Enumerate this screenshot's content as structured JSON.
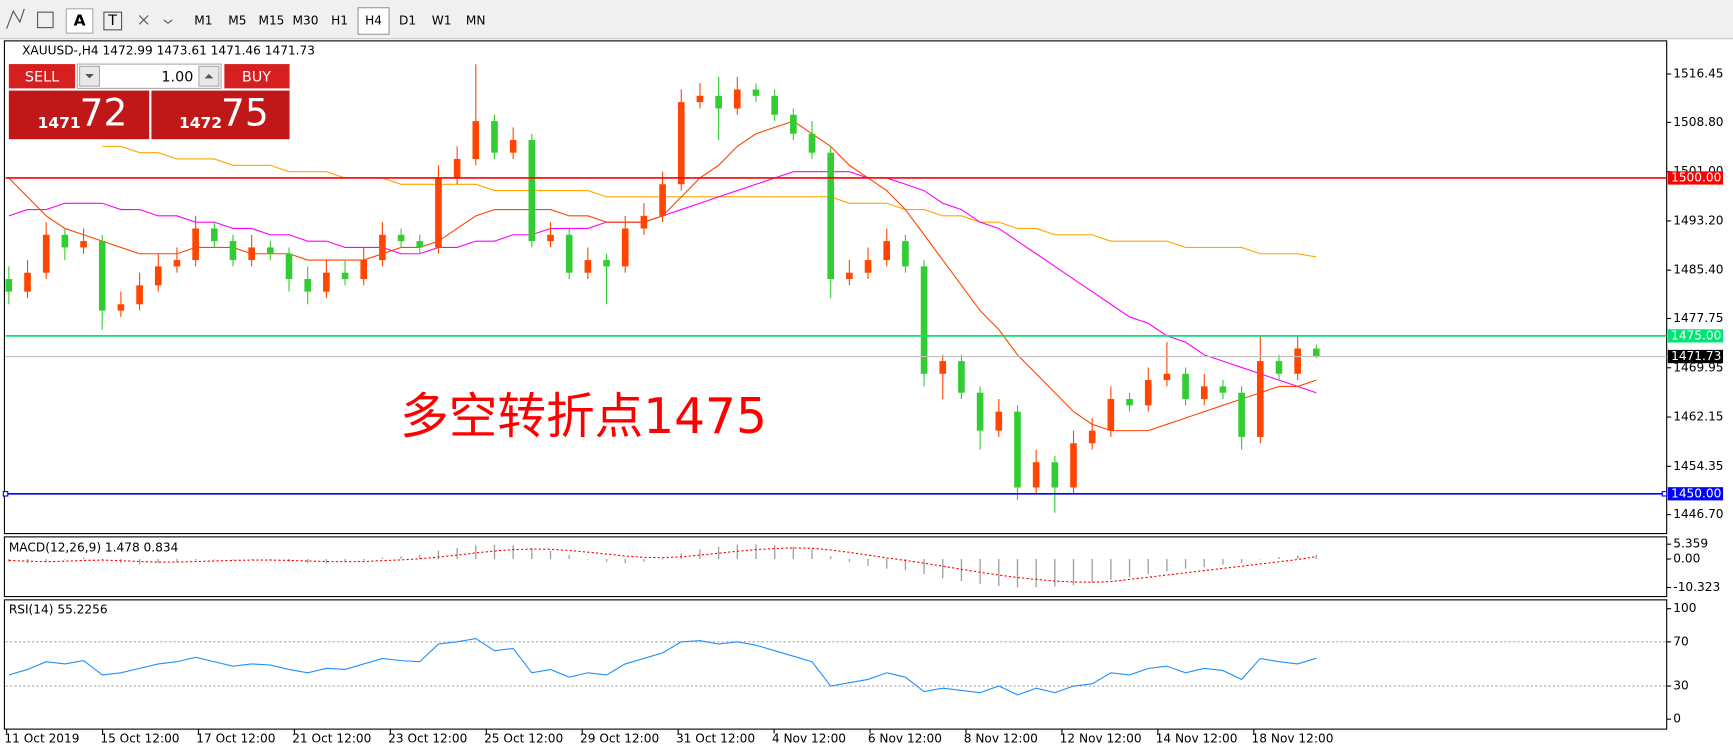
{
  "toolbar": {
    "tools": [
      "A"
    ],
    "timeframes": [
      "M1",
      "M5",
      "M15",
      "M30",
      "H1",
      "H4",
      "D1",
      "W1",
      "MN"
    ],
    "active": "H4"
  },
  "trade_panel": {
    "sell": "SELL",
    "buy": "BUY",
    "volume": "1.00",
    "bid": {
      "prefix": "1471",
      "main": "72"
    },
    "ask": {
      "prefix": "1472",
      "main": "75"
    }
  },
  "annotation": "多空转折点1475",
  "xtick_labels": [
    "11 Oct 2019",
    "15 Oct 12:00",
    "17 Oct 12:00",
    "21 Oct 12:00",
    "23 Oct 12:00",
    "25 Oct 12:00",
    "29 Oct 12:00",
    "31 Oct 12:00",
    "4 Nov 12:00",
    "6 Nov 12:00",
    "8 Nov 12:00",
    "12 Nov 12:00",
    "14 Nov 12:00",
    "18 Nov 12:00"
  ],
  "chart_data": [
    {
      "type": "candlestick",
      "title": "XAUUSD-,H4  1472.99 1473.61 1471.46 1471.73",
      "up_color": "#ff4500",
      "down_color": "#32cd32",
      "open": [
        1484,
        1482,
        1485,
        1491,
        1489,
        1490,
        1479,
        1480,
        1483,
        1486,
        1487,
        1492,
        1490,
        1487,
        1489,
        1488,
        1484,
        1482,
        1485,
        1484,
        1487,
        1491,
        1490,
        1489,
        1500,
        1503,
        1509,
        1504,
        1506,
        1490,
        1491,
        1485,
        1487,
        1486,
        1492,
        1494,
        1499,
        1512,
        1513,
        1511,
        1514,
        1513,
        1510,
        1507,
        1504,
        1484,
        1485,
        1487,
        1490,
        1486,
        1469,
        1471,
        1466,
        1460,
        1463,
        1451,
        1455,
        1451,
        1458,
        1460,
        1465,
        1464,
        1468,
        1469,
        1465,
        1467,
        1466,
        1459,
        1471,
        1469,
        1472.99
      ],
      "high": [
        1486,
        1487,
        1493,
        1492,
        1492,
        1491,
        1482,
        1485,
        1488,
        1489,
        1494,
        1493,
        1491,
        1491,
        1490,
        1489,
        1486,
        1487,
        1487,
        1489,
        1493,
        1492,
        1491,
        1502,
        1505,
        1518,
        1510,
        1508,
        1507,
        1493,
        1492,
        1489,
        1488,
        1494,
        1496,
        1501,
        1514,
        1515,
        1516,
        1516,
        1515,
        1514,
        1511,
        1509,
        1505,
        1487,
        1489,
        1492,
        1491,
        1487,
        1472,
        1472,
        1467,
        1465,
        1464,
        1457,
        1456,
        1460,
        1462,
        1467,
        1466,
        1470,
        1474,
        1470,
        1469,
        1468,
        1467,
        1475,
        1472,
        1475,
        1473.61
      ],
      "low": [
        1480,
        1481,
        1484,
        1487,
        1488,
        1476,
        1478,
        1479,
        1482,
        1485,
        1486,
        1489,
        1486,
        1486,
        1487,
        1482,
        1480,
        1481,
        1483,
        1483,
        1486,
        1489,
        1488,
        1488,
        1499,
        1502,
        1503,
        1503,
        1489,
        1489,
        1484,
        1484,
        1480,
        1485,
        1491,
        1493,
        1498,
        1511,
        1506,
        1510,
        1512,
        1509,
        1506,
        1503,
        1481,
        1483,
        1484,
        1486,
        1485,
        1467,
        1465,
        1465,
        1457,
        1459,
        1449,
        1450,
        1447,
        1450,
        1457,
        1459,
        1463,
        1463,
        1467,
        1464,
        1464,
        1465,
        1457,
        1458,
        1468,
        1468,
        1471.46
      ],
      "close": [
        1482,
        1485,
        1491,
        1489,
        1490,
        1479,
        1480,
        1483,
        1486,
        1487,
        1492,
        1490,
        1487,
        1489,
        1488,
        1484,
        1482,
        1485,
        1484,
        1487,
        1491,
        1490,
        1489,
        1500,
        1503,
        1509,
        1504,
        1506,
        1490,
        1491,
        1485,
        1487,
        1486,
        1492,
        1494,
        1499,
        1512,
        1513,
        1511,
        1514,
        1513,
        1510,
        1507,
        1504,
        1484,
        1485,
        1487,
        1490,
        1486,
        1469,
        1471,
        1466,
        1460,
        1463,
        1451,
        1455,
        1451,
        1458,
        1460,
        1465,
        1464,
        1468,
        1469,
        1465,
        1467,
        1466,
        1459,
        1471,
        1469,
        1473,
        1471.73
      ],
      "lines": [
        {
          "color": "#ffa500",
          "values": [
            null,
            null,
            null,
            null,
            null,
            1505,
            1505,
            1504,
            1504,
            1503,
            1503,
            1503,
            1502,
            1502,
            1502,
            1501,
            1501,
            1501,
            1500,
            1500,
            1500,
            1499,
            1499,
            1499,
            1499,
            1499,
            1498,
            1498,
            1498,
            1498,
            1498,
            1498,
            1497,
            1497,
            1497,
            1497,
            1497,
            1497,
            1497,
            1497,
            1497,
            1497,
            1497,
            1497,
            1497,
            1496,
            1496,
            1496,
            1495,
            1495,
            1494,
            1494,
            1493,
            1493,
            1492,
            1492,
            1491,
            1491,
            1491,
            1490,
            1490,
            1490,
            1490,
            1489,
            1489,
            1489,
            1489,
            1488,
            1488,
            1488,
            1487.5
          ]
        },
        {
          "color": "#ff00ff",
          "values": [
            1494,
            1495,
            1495,
            1496,
            1496,
            1496,
            1495,
            1495,
            1494,
            1494,
            1493,
            1493,
            1492,
            1492,
            1491,
            1491,
            1490,
            1490,
            1489,
            1489,
            1489,
            1488,
            1488,
            1489,
            1489,
            1490,
            1490,
            1491,
            1491,
            1492,
            1492,
            1492,
            1493,
            1493,
            1493,
            1494,
            1495,
            1496,
            1497,
            1498,
            1499,
            1500,
            1501,
            1501,
            1501,
            1501,
            1500,
            1500,
            1499,
            1498,
            1496,
            1495,
            1493,
            1492,
            1490,
            1488,
            1486,
            1484,
            1482,
            1480,
            1478,
            1477,
            1475,
            1474,
            1472,
            1471,
            1470,
            1469,
            1468,
            1467,
            1466
          ]
        },
        {
          "color": "#ff4500",
          "values": [
            1500,
            1497,
            1494,
            1492,
            1491,
            1490,
            1489,
            1488,
            1488,
            1488,
            1489,
            1489,
            1489,
            1488,
            1488,
            1488,
            1487,
            1487,
            1487,
            1487,
            1488,
            1489,
            1489,
            1490,
            1492,
            1494,
            1495,
            1495,
            1495,
            1495,
            1494,
            1494,
            1493,
            1493,
            1493,
            1494,
            1497,
            1500,
            1502,
            1505,
            1507,
            1508,
            1509,
            1507,
            1505,
            1502,
            1500,
            1498,
            1495,
            1491,
            1487,
            1483,
            1479,
            1476,
            1472,
            1469,
            1466,
            1463,
            1461,
            1460,
            1460,
            1460,
            1461,
            1462,
            1463,
            1464,
            1465,
            1466,
            1467,
            1467,
            1468
          ]
        }
      ],
      "levels": [
        {
          "value": 1500,
          "label": "1500.00",
          "color": "#ff0000"
        },
        {
          "value": 1475,
          "label": "1475.00",
          "color": "#00e676"
        },
        {
          "value": 1471.73,
          "label": "1471.73",
          "color": "#c0c0c0"
        },
        {
          "value": 1450,
          "label": "1450.00",
          "color": "#0000ff"
        }
      ],
      "ylim": [
        1443.7,
        1521.7
      ],
      "yticks": [
        1516.45,
        {
          "value": 1508.8,
          "label": "1508.80"
        },
        {
          "value": 1501,
          "label": "1501.00"
        },
        {
          "value": 1493.2,
          "label": "1493.20"
        },
        {
          "value": 1485.4,
          "label": "1485.40"
        },
        {
          "value": 1477.75,
          "label": "1477.75"
        },
        {
          "value": 1469.95,
          "label": "1469.95"
        },
        1462.15,
        1454.35,
        {
          "value": 1446.7,
          "label": "1446.70"
        }
      ]
    },
    {
      "type": "macd",
      "title": "MACD(12,26,9) 1.478 0.834",
      "hist_color": "#a0a0a0",
      "signal_color": "#ff0000",
      "values": [
        -1,
        -1.5,
        -1,
        0,
        0.5,
        -0.5,
        -1.5,
        -2,
        -1.5,
        -1,
        -0.5,
        0,
        0,
        -0.2,
        -0.5,
        -1,
        -1.5,
        -1.5,
        -1,
        -0.5,
        0.5,
        1,
        1.5,
        3,
        4,
        5,
        5.2,
        5,
        4,
        3,
        1.5,
        0,
        -1,
        -1.5,
        -1,
        0,
        2,
        3.5,
        4.5,
        5.2,
        5.3,
        5,
        4.5,
        3.5,
        1,
        -1,
        -2.5,
        -3.5,
        -4,
        -5.5,
        -7,
        -8,
        -9,
        -9.8,
        -10.3,
        -10.2,
        -10,
        -9.5,
        -8.5,
        -7.5,
        -6.5,
        -5.5,
        -4.5,
        -3.5,
        -3,
        -2,
        -1.5,
        0,
        0.8,
        1.2,
        1.478
      ],
      "signal": [
        -0.5,
        -0.8,
        -1,
        -0.8,
        -0.5,
        -0.4,
        -0.6,
        -0.9,
        -1.1,
        -1.1,
        -0.9,
        -0.7,
        -0.5,
        -0.4,
        -0.4,
        -0.5,
        -0.7,
        -0.9,
        -1,
        -0.9,
        -0.6,
        -0.3,
        0.1,
        0.7,
        1.4,
        2.2,
        2.9,
        3.4,
        3.6,
        3.5,
        3.1,
        2.5,
        1.8,
        1.1,
        0.6,
        0.5,
        0.8,
        1.4,
        2.1,
        2.8,
        3.4,
        3.8,
        4,
        3.9,
        3.3,
        2.4,
        1.4,
        0.4,
        -0.5,
        -1.5,
        -2.6,
        -3.7,
        -4.8,
        -5.8,
        -6.7,
        -7.4,
        -8,
        -8.3,
        -8.4,
        -8.2,
        -7.4,
        -6.6,
        -5.8,
        -5,
        -4.2,
        -3.4,
        -2.6,
        -1.8,
        -1,
        -0.2,
        0.834
      ],
      "ylim": [
        -13.6,
        7.6
      ],
      "yticks": [
        5.359,
        {
          "value": 0,
          "label": "0.00"
        },
        -10.323
      ]
    },
    {
      "type": "rsi",
      "title": "RSI(14) 55.2256",
      "color": "#1e90ff",
      "values": [
        40,
        45,
        52,
        50,
        53,
        40,
        42,
        46,
        50,
        52,
        56,
        52,
        48,
        50,
        49,
        45,
        42,
        46,
        45,
        50,
        55,
        53,
        52,
        68,
        70,
        73,
        62,
        64,
        42,
        45,
        38,
        42,
        40,
        50,
        55,
        60,
        70,
        71,
        68,
        70,
        67,
        62,
        57,
        52,
        30,
        33,
        36,
        42,
        38,
        25,
        28,
        26,
        24,
        30,
        22,
        28,
        24,
        30,
        32,
        42,
        40,
        46,
        48,
        42,
        46,
        44,
        36,
        55,
        52,
        50,
        55.2256
      ],
      "ylim": [
        -7,
        106
      ],
      "yticks": [
        100,
        70,
        30,
        0
      ],
      "levels": [
        70,
        30
      ]
    }
  ]
}
